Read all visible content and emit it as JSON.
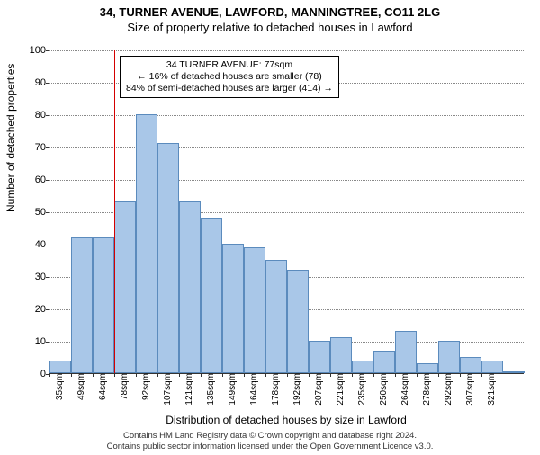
{
  "titles": {
    "line1": "34, TURNER AVENUE, LAWFORD, MANNINGTREE, CO11 2LG",
    "line2": "Size of property relative to detached houses in Lawford"
  },
  "chart": {
    "type": "histogram",
    "background_color": "#ffffff",
    "grid_color": "#888888",
    "axis_color": "#333333",
    "bar_fill": "#a9c7e8",
    "bar_stroke": "#5b8bbd",
    "ylabel": "Number of detached properties",
    "xlabel": "Distribution of detached houses by size in Lawford",
    "ylim": [
      0,
      100
    ],
    "ytick_step": 10,
    "x_start": 35,
    "x_step": 14.3,
    "x_unit": "sqm",
    "bars": [
      4,
      42,
      42,
      53,
      80,
      71,
      53,
      48,
      40,
      39,
      35,
      32,
      10,
      11,
      4,
      7,
      13,
      3,
      10,
      5,
      4,
      0
    ],
    "num_ticks": 21,
    "ref_line": {
      "x_index": 3,
      "color": "#d40000"
    },
    "annotation": {
      "line1": "34 TURNER AVENUE: 77sqm",
      "line2": "← 16% of detached houses are smaller (78)",
      "line3": "84% of semi-detached houses are larger (414) →"
    }
  },
  "footer": {
    "line1": "Contains HM Land Registry data © Crown copyright and database right 2024.",
    "line2": "Contains public sector information licensed under the Open Government Licence v3.0."
  }
}
